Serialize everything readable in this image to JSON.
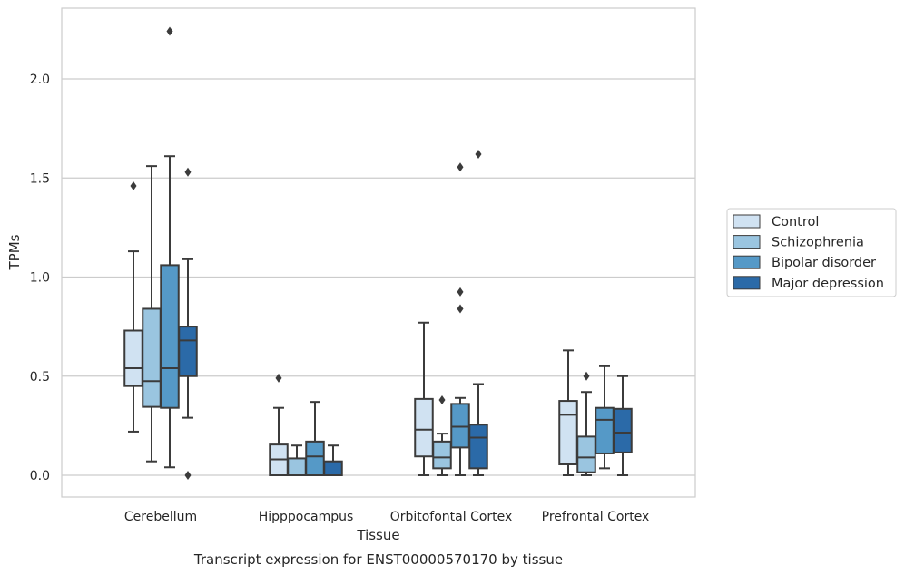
{
  "chart_data": {
    "type": "box",
    "title": "",
    "caption": "Transcript expression for ENST00000570170 by tissue",
    "xlabel": "Tissue",
    "ylabel": "TPMs",
    "ylim": [
      -0.11,
      2.37
    ],
    "yticks": [
      0.0,
      0.5,
      1.0,
      1.5,
      2.0
    ],
    "ytick_labels": [
      "0.0",
      "0.5",
      "1.0",
      "1.5",
      "2.0"
    ],
    "grid": "horizontal",
    "legend_position": "right",
    "categories": [
      "Cerebellum",
      "Hipppocampus",
      "Orbitofontal Cortex",
      "Prefrontal Cortex"
    ],
    "series": [
      {
        "name": "Control",
        "color": "#d0e2f2",
        "boxes": [
          {
            "whisker_low": 0.22,
            "q1": 0.45,
            "median": 0.54,
            "q3": 0.73,
            "whisker_high": 1.13,
            "outliers": [
              1.46
            ]
          },
          {
            "whisker_low": 0.0,
            "q1": 0.0,
            "median": 0.08,
            "q3": 0.155,
            "whisker_high": 0.34,
            "outliers": [
              0.49
            ]
          },
          {
            "whisker_low": 0.0,
            "q1": 0.095,
            "median": 0.23,
            "q3": 0.385,
            "whisker_high": 0.77,
            "outliers": []
          },
          {
            "whisker_low": 0.0,
            "q1": 0.055,
            "median": 0.305,
            "q3": 0.375,
            "whisker_high": 0.63,
            "outliers": []
          }
        ]
      },
      {
        "name": "Schizophrenia",
        "color": "#9ac5e0",
        "boxes": [
          {
            "whisker_low": 0.07,
            "q1": 0.345,
            "median": 0.475,
            "q3": 0.84,
            "whisker_high": 1.56,
            "outliers": []
          },
          {
            "whisker_low": 0.0,
            "q1": 0.0,
            "median": 0.0,
            "q3": 0.085,
            "whisker_high": 0.15,
            "outliers": []
          },
          {
            "whisker_low": 0.0,
            "q1": 0.035,
            "median": 0.09,
            "q3": 0.17,
            "whisker_high": 0.21,
            "outliers": [
              0.38
            ]
          },
          {
            "whisker_low": 0.0,
            "q1": 0.015,
            "median": 0.09,
            "q3": 0.195,
            "whisker_high": 0.42,
            "outliers": [
              0.5
            ]
          }
        ]
      },
      {
        "name": "Bipolar disorder",
        "color": "#5599c7",
        "boxes": [
          {
            "whisker_low": 0.04,
            "q1": 0.34,
            "median": 0.54,
            "q3": 1.06,
            "whisker_high": 1.61,
            "outliers": [
              2.24
            ]
          },
          {
            "whisker_low": 0.0,
            "q1": 0.0,
            "median": 0.095,
            "q3": 0.17,
            "whisker_high": 0.37,
            "outliers": []
          },
          {
            "whisker_low": 0.0,
            "q1": 0.14,
            "median": 0.245,
            "q3": 0.36,
            "whisker_high": 0.39,
            "outliers": [
              0.84,
              0.925,
              1.555
            ]
          },
          {
            "whisker_low": 0.035,
            "q1": 0.11,
            "median": 0.28,
            "q3": 0.34,
            "whisker_high": 0.55,
            "outliers": []
          }
        ]
      },
      {
        "name": "Major depression",
        "color": "#2b6aa8",
        "boxes": [
          {
            "whisker_low": 0.29,
            "q1": 0.5,
            "median": 0.68,
            "q3": 0.75,
            "whisker_high": 1.09,
            "outliers": [
              0.0,
              1.53
            ]
          },
          {
            "whisker_low": 0.0,
            "q1": 0.0,
            "median": 0.0,
            "q3": 0.07,
            "whisker_high": 0.15,
            "outliers": []
          },
          {
            "whisker_low": 0.0,
            "q1": 0.035,
            "median": 0.19,
            "q3": 0.255,
            "whisker_high": 0.46,
            "outliers": [
              1.62
            ]
          },
          {
            "whisker_low": 0.0,
            "q1": 0.115,
            "median": 0.215,
            "q3": 0.335,
            "whisker_high": 0.5,
            "outliers": []
          }
        ]
      }
    ]
  }
}
